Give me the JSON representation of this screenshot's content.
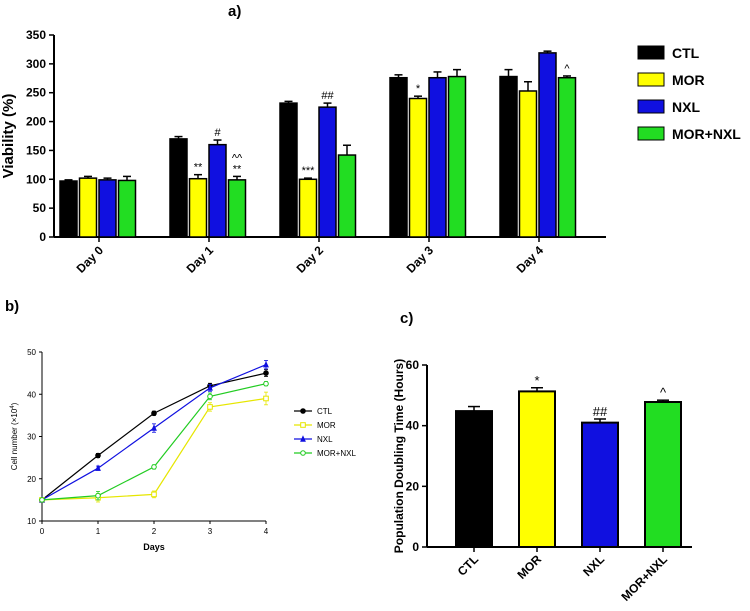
{
  "chart_data": [
    {
      "id": "a",
      "panel_label": "a)",
      "type": "bar",
      "ylabel": "Viability (%)",
      "ylim": [
        0,
        350
      ],
      "yticks": [
        0,
        50,
        100,
        150,
        200,
        250,
        300,
        350
      ],
      "categories": [
        "Day 0",
        "Day 1",
        "Day 2",
        "Day 3",
        "Day 4"
      ],
      "series": [
        {
          "name": "CTL",
          "color": "#000000",
          "values": [
            97,
            170,
            232,
            276,
            278
          ],
          "errors": [
            2,
            4,
            3,
            5,
            12
          ],
          "labels": [
            "",
            "",
            "",
            "",
            ""
          ]
        },
        {
          "name": "MOR",
          "color": "#ffff00",
          "values": [
            102,
            101,
            100,
            240,
            253
          ],
          "errors": [
            3,
            7,
            2,
            4,
            16
          ],
          "labels": [
            "",
            "**",
            "***",
            "*",
            ""
          ]
        },
        {
          "name": "NXL",
          "color": "#1010e0",
          "values": [
            99,
            160,
            225,
            276,
            319
          ],
          "errors": [
            3,
            8,
            7,
            10,
            3
          ],
          "labels": [
            "",
            "#",
            "##",
            "",
            ""
          ]
        },
        {
          "name": "MOR+NXL",
          "color": "#22dd22",
          "values": [
            98,
            99,
            142,
            278,
            276
          ],
          "errors": [
            7,
            6,
            17,
            12,
            3
          ],
          "labels": [
            "",
            "^^\n**",
            "",
            "",
            "^"
          ]
        }
      ],
      "legend": "right"
    },
    {
      "id": "b",
      "panel_label": "b)",
      "type": "line",
      "xlabel": "Days",
      "ylabel": "Cell number (×10",
      "ylabel_exp": "4",
      "ylabel_close": ")",
      "xlim": [
        0,
        4
      ],
      "ylim": [
        10,
        50
      ],
      "xticks": [
        0,
        1,
        2,
        3,
        4
      ],
      "yticks": [
        10,
        20,
        30,
        40,
        50
      ],
      "x": [
        0,
        1,
        2,
        3,
        4
      ],
      "series": [
        {
          "name": "CTL",
          "color": "#000000",
          "marker": "circle-filled",
          "values": [
            15,
            25.5,
            35.5,
            42,
            45
          ],
          "errors": [
            0.3,
            0.5,
            0.5,
            0.6,
            0.8
          ]
        },
        {
          "name": "MOR",
          "color": "#e6e600",
          "marker": "square-open",
          "values": [
            15,
            15.5,
            16.3,
            37,
            39
          ],
          "errors": [
            0.3,
            1,
            0.8,
            1,
            1.5
          ]
        },
        {
          "name": "NXL",
          "color": "#1010e0",
          "marker": "triangle-filled",
          "values": [
            15,
            22.5,
            32,
            41.5,
            47
          ],
          "errors": [
            0.3,
            0.5,
            1,
            0.8,
            1
          ]
        },
        {
          "name": "MOR+NXL",
          "color": "#22cc22",
          "marker": "circle-open",
          "values": [
            15,
            16,
            22.8,
            39.5,
            42.5
          ],
          "errors": [
            0.3,
            1,
            0.5,
            0.8,
            0.5
          ]
        }
      ],
      "legend": "right"
    },
    {
      "id": "c",
      "panel_label": "c)",
      "type": "bar",
      "ylabel": "Population Doubling Time (Hours)",
      "ylim": [
        0,
        60
      ],
      "yticks": [
        0,
        20,
        40,
        60
      ],
      "categories": [
        "CTL",
        "MOR",
        "NXL",
        "MOR+NXL"
      ],
      "values": [
        44.8,
        51.3,
        41.0,
        47.8
      ],
      "errors": [
        1.5,
        1.2,
        1.2,
        0.6
      ],
      "colors": [
        "#000000",
        "#ffff00",
        "#1010e0",
        "#22dd22"
      ],
      "labels": [
        "",
        "*",
        "##",
        "^"
      ]
    }
  ]
}
